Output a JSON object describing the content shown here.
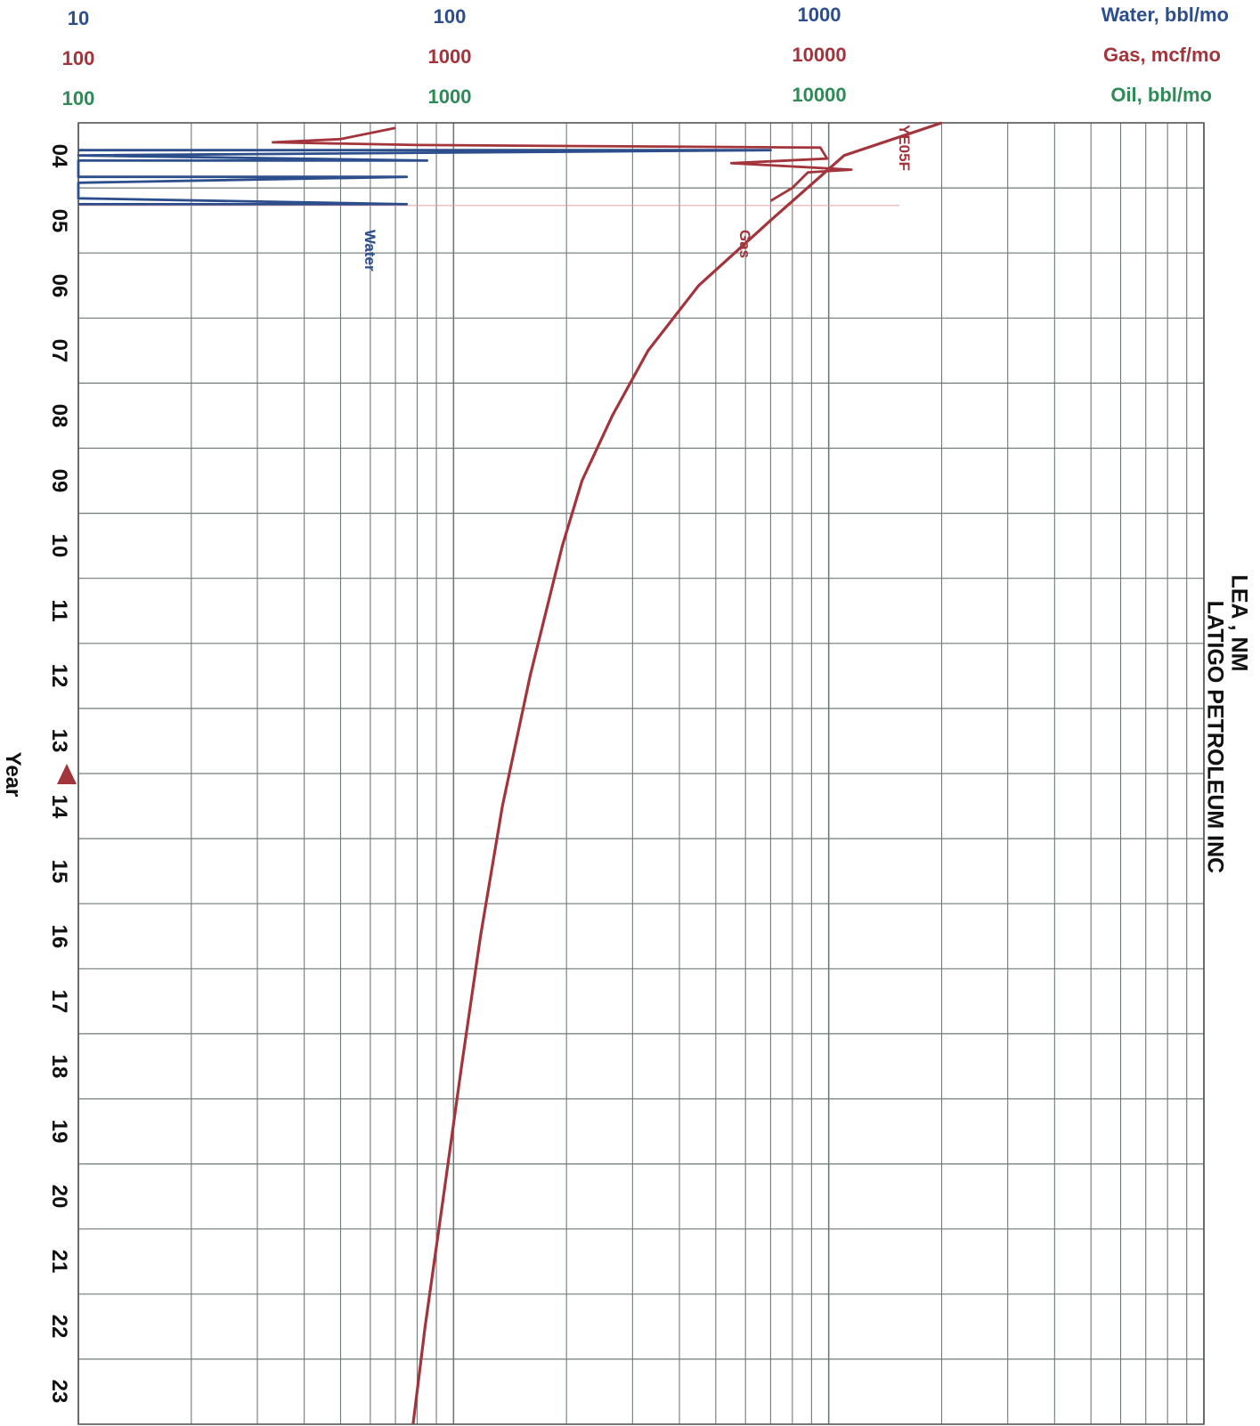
{
  "scales": {
    "water": {
      "label": "Water, bbl/mo",
      "ticks": [
        "10",
        "100",
        "1000"
      ],
      "color": "#2d4e8c"
    },
    "gas": {
      "label": "Gas, mcf/mo",
      "ticks": [
        "100",
        "1000",
        "10000"
      ],
      "color": "#a3343b"
    },
    "oil": {
      "label": "Oil, bbl/mo",
      "ticks": [
        "100",
        "1000",
        "10000"
      ],
      "color": "#2e8a57"
    }
  },
  "side_title": {
    "line1": "LEA , NM",
    "line2": "LATIGO PETROLEUM INC"
  },
  "chart_data": {
    "type": "line",
    "orientation": "rotated: time runs top-to-bottom, rate increases left-to-right on log scale",
    "y_axis_label": "Year",
    "year_ticks": [
      "04",
      "05",
      "06",
      "07",
      "08",
      "09",
      "10",
      "11",
      "12",
      "13",
      "14",
      "15",
      "16",
      "17",
      "18",
      "19",
      "20",
      "21",
      "22",
      "23"
    ],
    "y_range_years": [
      2003.5,
      2023.5
    ],
    "x_scale": "log",
    "gas_axis_range_mcf_mo": [
      100,
      100000
    ],
    "water_axis_range_bbl_mo": [
      10,
      10000
    ],
    "marker": {
      "year": 2013.5,
      "color": "#a3343b",
      "shape": "triangle"
    },
    "series": [
      {
        "name": "Water",
        "unit": "bbl/mo",
        "color": "#2d4e8c",
        "points": [
          {
            "year": 2003.92,
            "value": 10
          },
          {
            "year": 2003.92,
            "value": 700
          },
          {
            "year": 2004.0,
            "value": 10
          },
          {
            "year": 2004.08,
            "value": 85
          },
          {
            "year": 2004.08,
            "value": 10
          },
          {
            "year": 2004.33,
            "value": 10
          },
          {
            "year": 2004.33,
            "value": 75
          },
          {
            "year": 2004.42,
            "value": 10
          },
          {
            "year": 2004.66,
            "value": 10
          },
          {
            "year": 2004.75,
            "value": 75
          },
          {
            "year": 2004.75,
            "value": 10
          }
        ]
      },
      {
        "name": "Gas",
        "unit": "mcf/mo",
        "color": "#a3343b",
        "points": [
          {
            "year": 2003.58,
            "value": 700
          },
          {
            "year": 2003.75,
            "value": 500
          },
          {
            "year": 2003.8,
            "value": 330
          },
          {
            "year": 2003.84,
            "value": 800
          },
          {
            "year": 2003.88,
            "value": 9500
          },
          {
            "year": 2004.05,
            "value": 9900
          },
          {
            "year": 2004.12,
            "value": 5500
          },
          {
            "year": 2004.22,
            "value": 11500
          },
          {
            "year": 2004.26,
            "value": 8800
          },
          {
            "year": 2004.5,
            "value": 8000
          },
          {
            "year": 2004.7,
            "value": 7000
          }
        ]
      },
      {
        "name": "YE05F",
        "color": "#a3343b",
        "points": [
          {
            "year": 2003.5,
            "value": 20000
          },
          {
            "year": 2004.0,
            "value": 11000
          },
          {
            "year": 2005.0,
            "value": 7000
          },
          {
            "year": 2006.0,
            "value": 4500
          },
          {
            "year": 2007.0,
            "value": 3300
          },
          {
            "year": 2008.0,
            "value": 2650
          },
          {
            "year": 2009.0,
            "value": 2200
          },
          {
            "year": 2010.0,
            "value": 1950
          },
          {
            "year": 2012.0,
            "value": 1600
          },
          {
            "year": 2014.0,
            "value": 1350
          },
          {
            "year": 2016.0,
            "value": 1180
          },
          {
            "year": 2018.0,
            "value": 1050
          },
          {
            "year": 2020.0,
            "value": 940
          },
          {
            "year": 2022.0,
            "value": 840
          },
          {
            "year": 2023.5,
            "value": 780
          }
        ]
      }
    ],
    "curve_labels": [
      {
        "text": "Water",
        "color": "#2d4e8c"
      },
      {
        "text": "Gas",
        "color": "#a3343b"
      },
      {
        "text": "YE05F",
        "color": "#a3343b"
      }
    ]
  }
}
